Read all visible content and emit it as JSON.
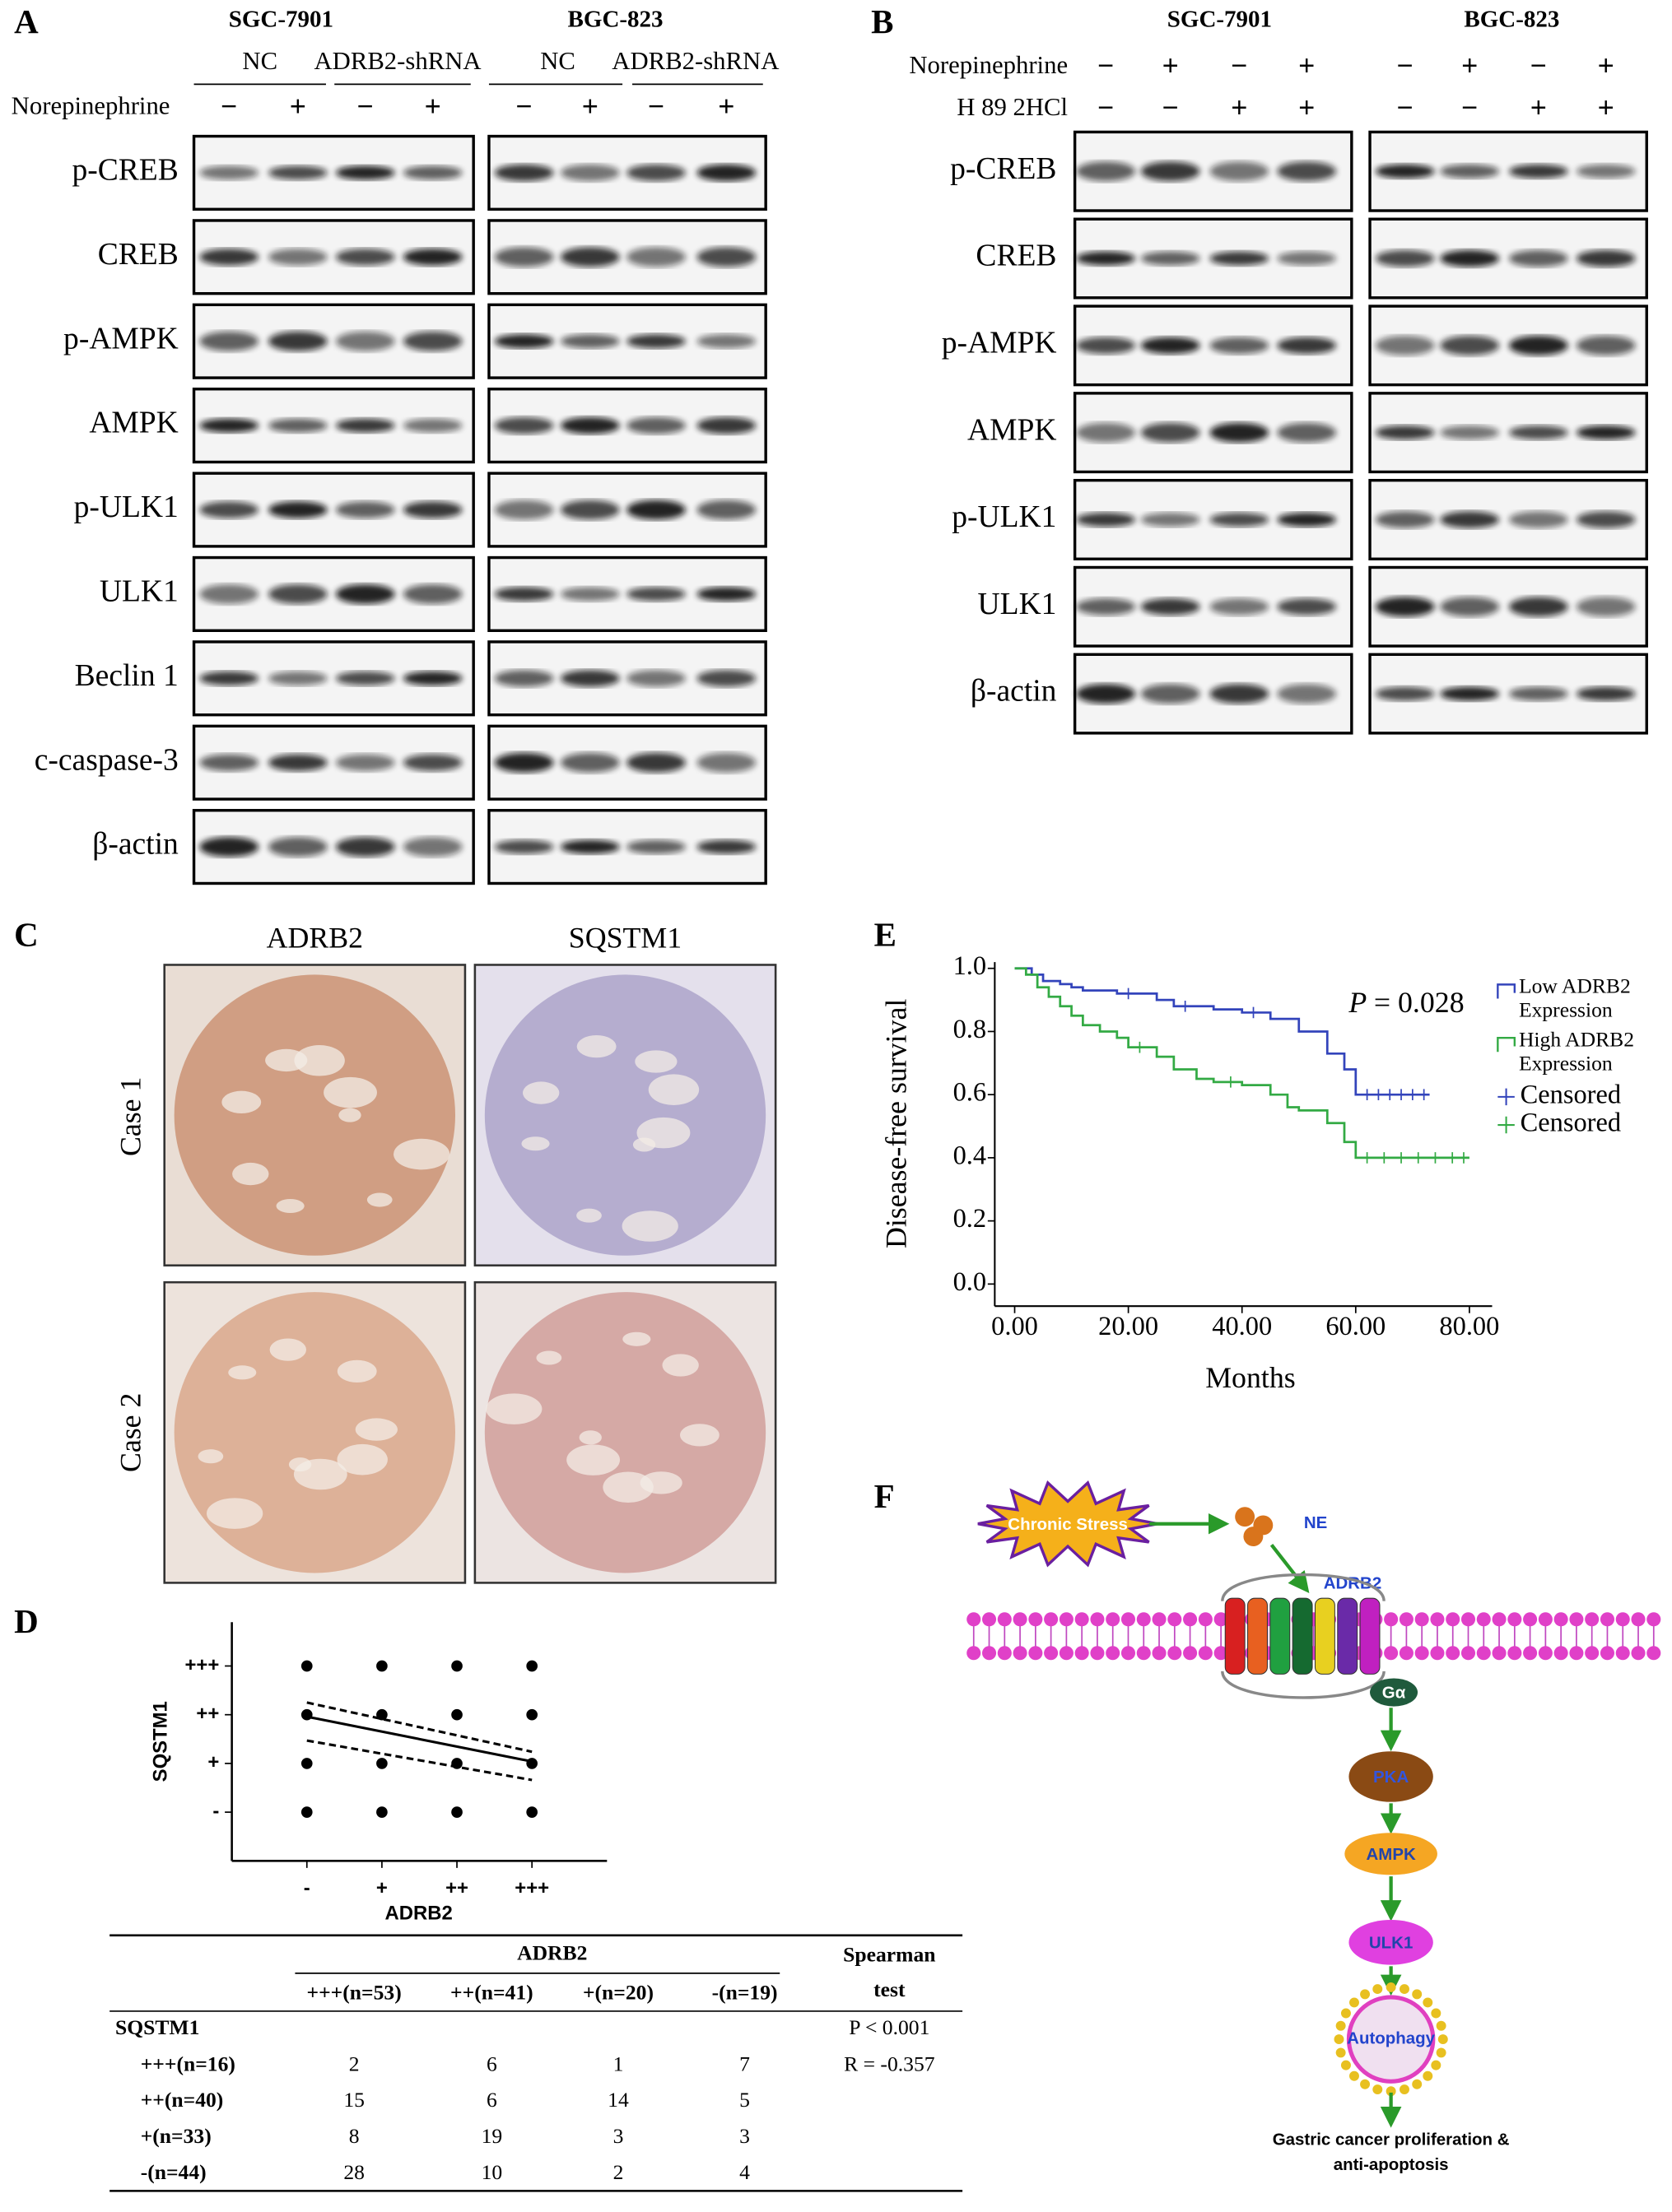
{
  "panels": {
    "A": {
      "letter": "A",
      "cell_lines": [
        "SGC-7901",
        "BGC-823"
      ],
      "groups": [
        "NC",
        "ADRB2-shRNA",
        "NC",
        "ADRB2-shRNA"
      ],
      "treatment": {
        "label": "Norepinephrine",
        "signs": [
          "−",
          "+",
          "−",
          "+",
          "−",
          "+",
          "−",
          "+"
        ]
      },
      "rows": [
        "p-CREB",
        "CREB",
        "p-AMPK",
        "AMPK",
        "p-ULK1",
        "ULK1",
        "Beclin 1",
        "c-caspase-3",
        "β-actin"
      ]
    },
    "B": {
      "letter": "B",
      "cell_lines": [
        "SGC-7901",
        "BGC-823"
      ],
      "treatments": [
        {
          "label": "Norepinephrine",
          "signs": [
            "−",
            "+",
            "−",
            "+",
            "−",
            "+",
            "−",
            "+"
          ]
        },
        {
          "label": "H 89 2HCl",
          "signs": [
            "−",
            "−",
            "+",
            "+",
            "−",
            "−",
            "+",
            "+"
          ]
        }
      ],
      "rows": [
        "p-CREB",
        "CREB",
        "p-AMPK",
        "AMPK",
        "p-ULK1",
        "ULK1",
        "β-actin"
      ]
    },
    "C": {
      "letter": "C",
      "columns": [
        "ADRB2",
        "SQSTM1"
      ],
      "rows": [
        "Case 1",
        "Case 2"
      ]
    },
    "D": {
      "letter": "D",
      "table": {
        "group_header": "ADRB2",
        "test_header": [
          "Spearman",
          "test"
        ],
        "columns": [
          "+++(n=53)",
          "++(n=41)",
          "+(n=20)",
          "-(n=19)"
        ],
        "row_group": "SQSTM1",
        "rows": [
          {
            "label": "+++(n=16)",
            "cells": [
              2,
              6,
              1,
              7
            ]
          },
          {
            "label": "++(n=40)",
            "cells": [
              15,
              6,
              14,
              5
            ]
          },
          {
            "label": "+(n=33)",
            "cells": [
              8,
              19,
              3,
              3
            ]
          },
          {
            "label": "-(n=44)",
            "cells": [
              28,
              10,
              2,
              4
            ]
          }
        ],
        "stats": [
          "P < 0.001",
          "R = -0.357"
        ]
      }
    },
    "E": {
      "letter": "E"
    },
    "F": {
      "letter": "F",
      "nodes": {
        "stress": "Chronic Stress",
        "ne": "NE",
        "receptor": "ADRB2",
        "g_protein": "Gα",
        "pka": "PKA",
        "ampk": "AMPK",
        "ulk1": "ULK1",
        "autophagy": "Autophagy"
      },
      "outcome": [
        "Gastric cancer proliferation &",
        "anti-apoptosis"
      ]
    }
  },
  "chart_data": [
    {
      "type": "scatter",
      "x_label": "ADRB2",
      "y_label": "SQSTM1",
      "xlim": [
        -1,
        4
      ],
      "ylim": [
        -1,
        3.9
      ],
      "xticks": [
        {
          "value": 0,
          "label": "-"
        },
        {
          "value": 1,
          "label": "+"
        },
        {
          "value": 2,
          "label": "++"
        },
        {
          "value": 3,
          "label": "+++"
        }
      ],
      "yticks": [
        {
          "value": 0,
          "label": "-"
        },
        {
          "value": 1,
          "label": "+"
        },
        {
          "value": 2,
          "label": "++"
        },
        {
          "value": 3,
          "label": "+++"
        }
      ],
      "points": {
        "x": [
          0,
          1,
          2,
          3,
          0,
          1,
          2,
          3,
          0,
          1,
          2,
          3,
          0,
          1,
          2,
          3
        ],
        "y": [
          0,
          0,
          0,
          0,
          1,
          1,
          1,
          1,
          2,
          2,
          2,
          2,
          3,
          3,
          3,
          3
        ]
      },
      "fit": {
        "x": [
          0,
          3
        ],
        "y": [
          1.96,
          1.04
        ]
      },
      "ci_upper": {
        "x": [
          0,
          3
        ],
        "y": [
          2.25,
          1.24
        ]
      },
      "ci_lower": {
        "x": [
          0,
          3
        ],
        "y": [
          1.47,
          0.66
        ]
      }
    },
    {
      "type": "line",
      "x_label": "Months",
      "y_label": "Disease-free survival",
      "xlim": [
        -3.5,
        84
      ],
      "ylim": [
        -0.07,
        1.02
      ],
      "xticks": [
        {
          "value": 0,
          "label": "0.00"
        },
        {
          "value": 20,
          "label": "20.00"
        },
        {
          "value": 40,
          "label": "40.00"
        },
        {
          "value": 60,
          "label": "60.00"
        },
        {
          "value": 80,
          "label": "80.00"
        }
      ],
      "yticks": [
        {
          "value": 0,
          "label": "0.0"
        },
        0.2,
        0.4,
        0.6,
        0.8,
        {
          "value": 1,
          "label": "1.0"
        }
      ],
      "annotation": {
        "symbol": "P",
        "text": "= 0.028"
      },
      "series": [
        {
          "name": "Low ADRB2 Expression",
          "color": "#3344bb",
          "x": [
            0,
            3,
            5,
            8,
            10,
            12,
            18,
            25,
            28,
            35,
            40,
            45,
            50,
            55,
            58,
            60,
            73
          ],
          "values": [
            1.0,
            0.98,
            0.96,
            0.95,
            0.94,
            0.93,
            0.92,
            0.9,
            0.88,
            0.87,
            0.86,
            0.84,
            0.8,
            0.73,
            0.68,
            0.6,
            0.6
          ],
          "censored_label": "Censored",
          "censored": {
            "x": [
              20,
              30,
              42,
              62,
              64,
              66,
              68,
              70,
              72
            ],
            "y": [
              0.92,
              0.88,
              0.86,
              0.6,
              0.6,
              0.6,
              0.6,
              0.6,
              0.6
            ]
          }
        },
        {
          "name": "High ADRB2 Expression",
          "color": "#33aa44",
          "x": [
            0,
            2,
            4,
            6,
            8,
            10,
            12,
            15,
            18,
            20,
            25,
            28,
            32,
            35,
            40,
            45,
            48,
            50,
            55,
            58,
            60,
            80
          ],
          "values": [
            1.0,
            0.98,
            0.94,
            0.91,
            0.88,
            0.85,
            0.82,
            0.8,
            0.78,
            0.75,
            0.72,
            0.68,
            0.65,
            0.64,
            0.63,
            0.6,
            0.56,
            0.55,
            0.51,
            0.45,
            0.4,
            0.4
          ],
          "censored_label": "Censored",
          "censored": {
            "x": [
              22,
              38,
              62,
              65,
              68,
              71,
              74,
              77,
              79
            ],
            "y": [
              0.75,
              0.64,
              0.4,
              0.4,
              0.4,
              0.4,
              0.4,
              0.4,
              0.4
            ]
          }
        }
      ]
    }
  ]
}
